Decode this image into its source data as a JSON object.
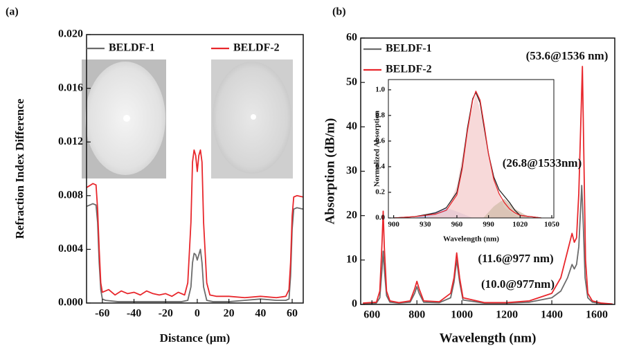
{
  "chart_data": [
    {
      "type": "line",
      "panel_label": "(a)",
      "x_label": "Distance (μm)",
      "y_label": "Refraction Index Difference",
      "xlim": [
        -70,
        67
      ],
      "ylim": [
        0,
        0.02
      ],
      "xticks": [
        -60,
        -40,
        -20,
        0,
        20,
        40,
        60
      ],
      "yticks": [
        {
          "value": 0,
          "label": "0.000"
        },
        {
          "value": 0.004,
          "label": "0.004"
        },
        {
          "value": 0.008,
          "label": "0.008"
        },
        {
          "value": 0.012,
          "label": "0.012"
        },
        {
          "value": 0.016,
          "label": "0.016"
        },
        {
          "value": 0.02,
          "label": "0.020"
        }
      ],
      "legend": "top",
      "series": [
        {
          "name": "BELDF-1",
          "color": "#6b6b6b",
          "x": [
            -70,
            -66,
            -64,
            -63,
            -62,
            -61,
            -60,
            -58,
            -50,
            -40,
            -30,
            -20,
            -10,
            -6,
            -4,
            -3,
            -2,
            -1,
            0,
            1,
            2,
            3,
            4,
            6,
            10,
            20,
            30,
            40,
            50,
            56,
            58,
            59,
            60,
            61,
            63,
            67
          ],
          "values": [
            0.0072,
            0.0074,
            0.0073,
            0.006,
            0.003,
            0.001,
            0.0003,
            0.0002,
            0.0001,
            0.0001,
            0.0001,
            0.0001,
            0.0001,
            0.0002,
            0.0012,
            0.003,
            0.0037,
            0.0036,
            0.0032,
            0.0036,
            0.004,
            0.003,
            0.0012,
            0.0002,
            0.0001,
            0.0001,
            0.0002,
            0.0003,
            0.0002,
            0.0002,
            0.0003,
            0.002,
            0.0055,
            0.007,
            0.0071,
            0.007
          ]
        },
        {
          "name": "BELDF-2",
          "color": "#e8262b",
          "x": [
            -70,
            -66,
            -64,
            -63,
            -62,
            -61,
            -60,
            -56,
            -52,
            -48,
            -44,
            -40,
            -36,
            -32,
            -28,
            -24,
            -20,
            -16,
            -12,
            -8,
            -6,
            -4,
            -3,
            -2,
            -1,
            0,
            1,
            2,
            3,
            4,
            6,
            8,
            12,
            20,
            30,
            40,
            50,
            56,
            58,
            59,
            60,
            61,
            63,
            67
          ],
          "values": [
            0.0086,
            0.0089,
            0.0088,
            0.007,
            0.004,
            0.0015,
            0.0008,
            0.001,
            0.0006,
            0.0009,
            0.0007,
            0.0008,
            0.0006,
            0.0009,
            0.0007,
            0.0006,
            0.0007,
            0.0005,
            0.0008,
            0.0006,
            0.0015,
            0.006,
            0.0105,
            0.0114,
            0.011,
            0.0098,
            0.011,
            0.0114,
            0.0105,
            0.006,
            0.0015,
            0.0006,
            0.0005,
            0.0005,
            0.0004,
            0.0005,
            0.0004,
            0.0005,
            0.001,
            0.003,
            0.0065,
            0.0079,
            0.008,
            0.0079
          ]
        }
      ]
    },
    {
      "type": "line",
      "panel_label": "(b)",
      "x_label": "Wavelength (nm)",
      "y_label": "Absorption (dB/m)",
      "xlim": [
        550,
        1680
      ],
      "ylim": [
        0,
        60
      ],
      "xticks": [
        600,
        800,
        1000,
        1200,
        1400,
        1600
      ],
      "yticks": [
        0,
        10,
        20,
        30,
        40,
        50,
        60
      ],
      "legend": "upper left",
      "annotations": [
        {
          "text": "(53.6@1536 nm)",
          "color": "#e8262b"
        },
        {
          "text": "(26.8@1533nm)",
          "color": "#111111"
        },
        {
          "text": "(11.6@977 nm)",
          "color": "#e8262b"
        },
        {
          "text": "(10.0@977nm)",
          "color": "#111111"
        }
      ],
      "series": [
        {
          "name": "BELDF-1",
          "color": "#6b6b6b",
          "x": [
            560,
            620,
            635,
            645,
            650,
            655,
            665,
            680,
            720,
            770,
            790,
            800,
            810,
            830,
            900,
            950,
            965,
            977,
            990,
            1005,
            1100,
            1200,
            1300,
            1400,
            1440,
            1470,
            1490,
            1500,
            1510,
            1520,
            1533,
            1540,
            1548,
            1560,
            1580,
            1620,
            1670
          ],
          "values": [
            0.2,
            0.3,
            1.5,
            8,
            12,
            8,
            2,
            0.5,
            0.3,
            0.5,
            2.5,
            4,
            2.5,
            0.5,
            0.4,
            1.5,
            5,
            10,
            5,
            1,
            0.3,
            0.3,
            0.5,
            1.5,
            3,
            6,
            9,
            8,
            9,
            13,
            26.8,
            18,
            6,
            1.5,
            0.5,
            0.2,
            0.1
          ]
        },
        {
          "name": "BELDF-2",
          "color": "#e8262b",
          "x": [
            560,
            620,
            635,
            645,
            650,
            655,
            665,
            680,
            720,
            770,
            790,
            800,
            810,
            830,
            900,
            950,
            965,
            977,
            990,
            1005,
            1100,
            1200,
            1300,
            1400,
            1440,
            1470,
            1490,
            1500,
            1510,
            1520,
            1536,
            1542,
            1550,
            1560,
            1580,
            1620,
            1670
          ],
          "values": [
            0.3,
            0.5,
            3,
            14,
            21,
            13,
            3,
            0.8,
            0.4,
            0.8,
            3.5,
            5.2,
            3.5,
            0.8,
            0.6,
            2.5,
            6,
            11.6,
            6,
            1.5,
            0.4,
            0.4,
            0.8,
            2.5,
            6,
            12,
            16,
            14,
            15,
            25,
            53.6,
            35,
            10,
            2.5,
            0.8,
            0.3,
            0.1
          ]
        }
      ]
    },
    {
      "type": "line",
      "x_label": "Wavelength (nm)",
      "y_label": "Normalized Absorption",
      "xlim": [
        895,
        1052
      ],
      "ylim": [
        0,
        1.08
      ],
      "xticks": [
        900,
        930,
        960,
        990,
        1020,
        1050
      ],
      "yticks": [
        {
          "value": 0,
          "label": "0.0"
        },
        {
          "value": 0.2,
          "label": "0.2"
        },
        {
          "value": 0.4,
          "label": "0.4"
        },
        {
          "value": 0.6,
          "label": "0.6"
        },
        {
          "value": 0.8,
          "label": "0.8"
        },
        {
          "value": 1,
          "label": "1.0"
        }
      ],
      "series": [
        {
          "color": "#b9b9e6",
          "fill": true,
          "x": [
            920,
            940,
            950,
            960,
            975
          ],
          "values": [
            0,
            0.05,
            0.08,
            0.05,
            0
          ]
        },
        {
          "color": "#f4cccc",
          "fill": true,
          "x": [
            930,
            950,
            960,
            970,
            978,
            985,
            995,
            1005,
            1020
          ],
          "values": [
            0,
            0.05,
            0.25,
            0.7,
            0.97,
            0.75,
            0.3,
            0.08,
            0
          ]
        },
        {
          "color": "#d2bcaa",
          "fill": true,
          "x": [
            985,
            995,
            1005,
            1015,
            1030
          ],
          "values": [
            0,
            0.09,
            0.15,
            0.07,
            0
          ]
        },
        {
          "color": "#222222",
          "x": [
            900,
            920,
            940,
            950,
            960,
            965,
            970,
            975,
            978,
            982,
            986,
            990,
            995,
            1000,
            1005,
            1010,
            1015,
            1020,
            1030,
            1040
          ],
          "values": [
            0,
            0.01,
            0.04,
            0.08,
            0.2,
            0.4,
            0.7,
            0.93,
            0.98,
            0.9,
            0.7,
            0.5,
            0.32,
            0.22,
            0.17,
            0.12,
            0.06,
            0.02,
            0.01,
            0
          ]
        },
        {
          "color": "#e8262b",
          "x": [
            900,
            920,
            940,
            950,
            960,
            965,
            970,
            975,
            978,
            982,
            986,
            990,
            995,
            1000,
            1005,
            1010,
            1015,
            1020,
            1030,
            1040
          ],
          "values": [
            0,
            0.01,
            0.03,
            0.06,
            0.18,
            0.38,
            0.68,
            0.92,
            0.99,
            0.92,
            0.72,
            0.5,
            0.3,
            0.19,
            0.12,
            0.07,
            0.04,
            0.02,
            0.01,
            0
          ]
        }
      ]
    }
  ]
}
